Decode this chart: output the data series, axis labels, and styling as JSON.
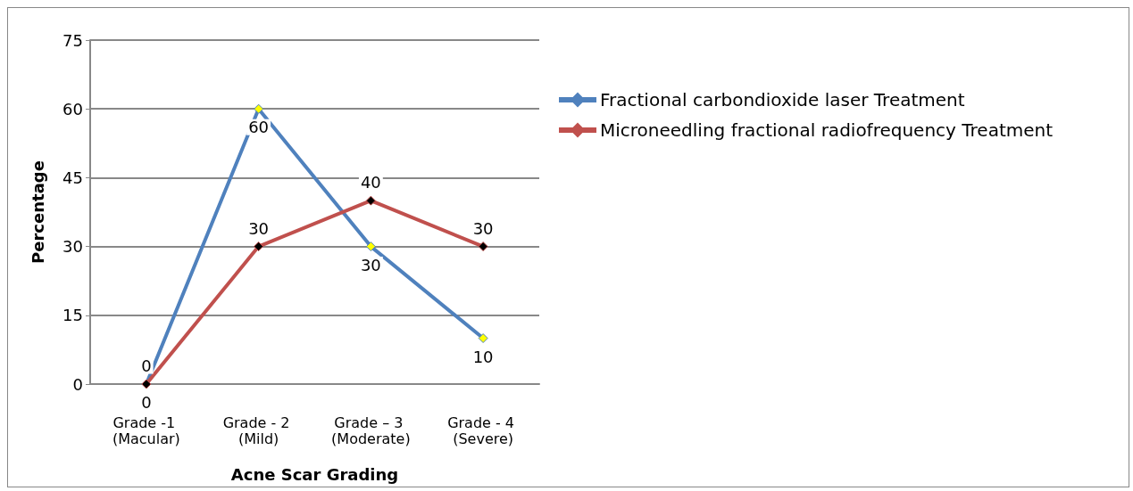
{
  "chart_data": {
    "type": "line",
    "xlabel": "Acne Scar Grading",
    "ylabel": "Percentage",
    "categories": [
      "Grade -1 (Macular)",
      "Grade - 2 (Mild)",
      "Grade – 3 (Moderate)",
      "Grade - 4 (Severe)"
    ],
    "series": [
      {
        "name": "Fractional carbondioxide laser Treatment",
        "color": "#4f81bd",
        "values": [
          0,
          60,
          30,
          10
        ]
      },
      {
        "name": "Microneedling fractional radiofrequency Treatment",
        "color": "#c0504d",
        "values": [
          0,
          30,
          40,
          30
        ]
      }
    ],
    "ylim": [
      0,
      75
    ],
    "yticks": [
      0,
      15,
      30,
      45,
      60,
      75
    ],
    "grid": "y",
    "legend": "right",
    "marker": "diamond",
    "data_labels": true
  }
}
